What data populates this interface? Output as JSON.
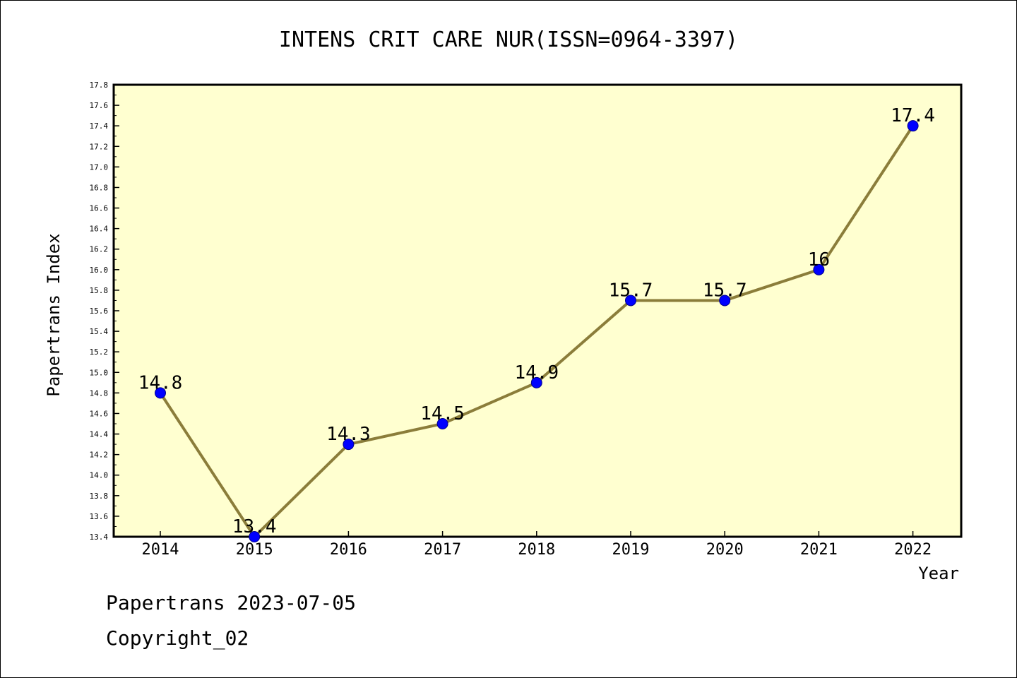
{
  "chart_data": {
    "type": "line",
    "title": "INTENS CRIT CARE NUR(ISSN=0964-3397)",
    "xlabel": "Year",
    "ylabel": "Papertrans Index",
    "categories": [
      "2014",
      "2015",
      "2016",
      "2017",
      "2018",
      "2019",
      "2020",
      "2021",
      "2022"
    ],
    "values": [
      14.8,
      13.4,
      14.3,
      14.5,
      14.9,
      15.7,
      15.7,
      16.0,
      17.4
    ],
    "data_labels": [
      "14.8",
      "13.4",
      "14.3",
      "14.5",
      "14.9",
      "15.7",
      "15.7",
      "16",
      "17.4"
    ],
    "ylim": [
      13.4,
      17.8
    ],
    "yticks": [
      "13.4",
      "13.6",
      "13.8",
      "14.0",
      "14.2",
      "14.4",
      "14.6",
      "14.8",
      "15.0",
      "15.2",
      "15.4",
      "15.6",
      "15.8",
      "16.0",
      "16.2",
      "16.4",
      "16.6",
      "16.8",
      "17.0",
      "17.2",
      "17.4",
      "17.6",
      "17.8"
    ],
    "grid": false,
    "colors": {
      "plot_background": "#ffffd0",
      "line": "#8b7d3a",
      "marker": "#0000ff"
    }
  },
  "footer": {
    "line1": "Papertrans 2023-07-05",
    "line2": "Copyright_02"
  }
}
